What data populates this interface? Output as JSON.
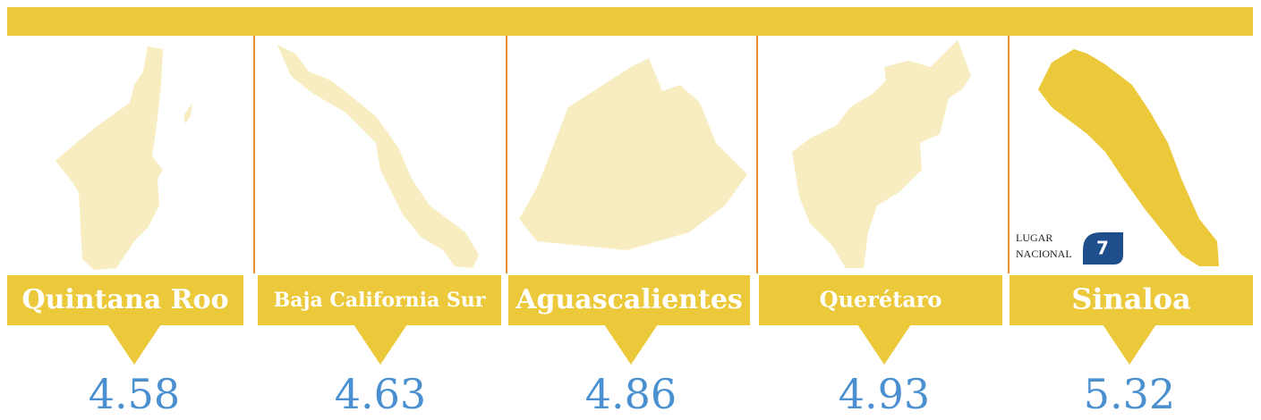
{
  "states": [
    {
      "name": "Quintana Roo",
      "value": 4.58
    },
    {
      "name": "Baja California Sur",
      "value": 4.63
    },
    {
      "name": "Aguascalientes",
      "value": 4.86
    },
    {
      "name": "Querétaro",
      "value": 4.93
    },
    {
      "name": "Sinaloa",
      "value": 5.32
    }
  ],
  "badge": {
    "line1": "LUGAR",
    "line2": "NACIONAL",
    "rank": 7
  }
}
